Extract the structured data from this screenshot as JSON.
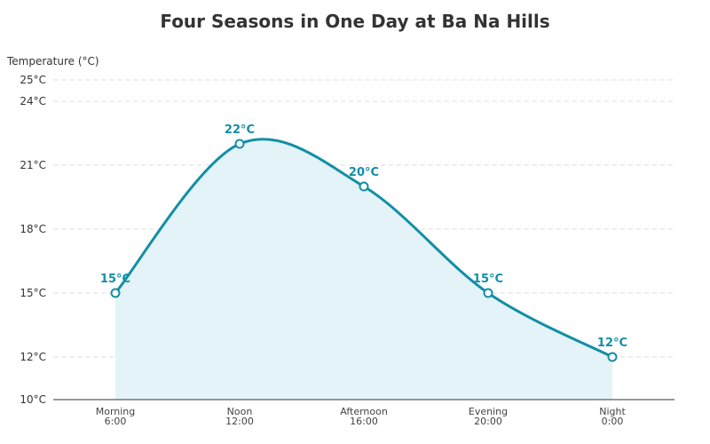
{
  "chart_data": {
    "type": "area",
    "title": "Four Seasons in One Day at Ba Na Hills",
    "xlabel": "",
    "ylabel": "Temperature (°C)",
    "categories": [
      [
        "Morning",
        "6:00"
      ],
      [
        "Noon",
        "12:00"
      ],
      [
        "Afternoon",
        "16:00"
      ],
      [
        "Evening",
        "20:00"
      ],
      [
        "Night",
        "0:00"
      ]
    ],
    "values": [
      15,
      22,
      20,
      15,
      12
    ],
    "data_labels": [
      "15°C",
      "22°C",
      "20°C",
      "15°C",
      "12°C"
    ],
    "ylim": [
      10,
      25
    ],
    "yticks": [
      10,
      12,
      15,
      18,
      21,
      24,
      25
    ],
    "ytick_labels": [
      "10°C",
      "12°C",
      "15°C",
      "18°C",
      "21°C",
      "24°C",
      "25°C"
    ],
    "grid": true,
    "colors": {
      "line": "#128fa6",
      "fill": "#e4f3f7",
      "grid": "#dddddd",
      "axis": "#333333"
    }
  }
}
